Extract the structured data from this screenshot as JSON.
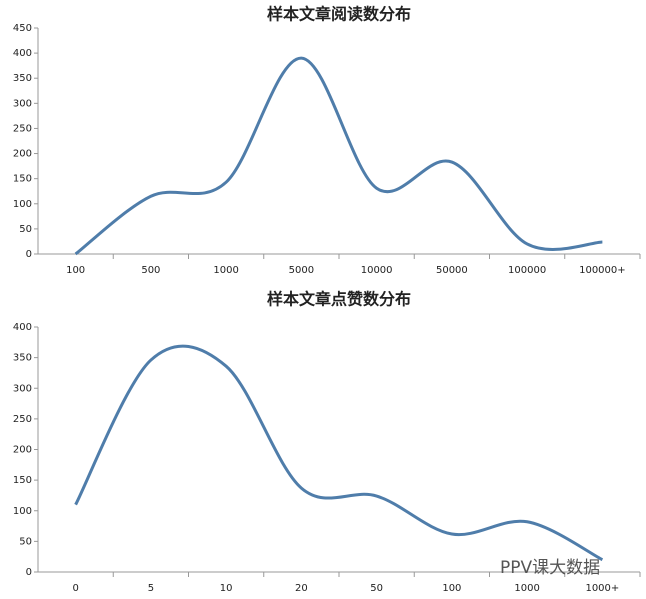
{
  "chart_data": [
    {
      "type": "line",
      "title": "样本文章阅读数分布",
      "categories": [
        "100",
        "500",
        "1000",
        "5000",
        "10000",
        "50000",
        "100000",
        "100000+"
      ],
      "values": [
        0,
        115,
        143,
        390,
        131,
        183,
        20,
        24
      ],
      "color": "#4f7daa",
      "smooth": true,
      "ylim": [
        0,
        450
      ],
      "yticks": [
        0,
        50,
        100,
        150,
        200,
        250,
        300,
        350,
        400,
        450
      ],
      "grid": false
    },
    {
      "type": "line",
      "title": "样本文章点赞数分布",
      "categories": [
        "0",
        "5",
        "10",
        "20",
        "50",
        "100",
        "1000",
        "1000+"
      ],
      "values": [
        110,
        346,
        336,
        137,
        124,
        62,
        82,
        20
      ],
      "color": "#4f7daa",
      "smooth": true,
      "ylim": [
        0,
        400
      ],
      "yticks": [
        0,
        50,
        100,
        150,
        200,
        250,
        300,
        350,
        400
      ],
      "grid": false
    }
  ],
  "watermark": "PPV课大数据"
}
